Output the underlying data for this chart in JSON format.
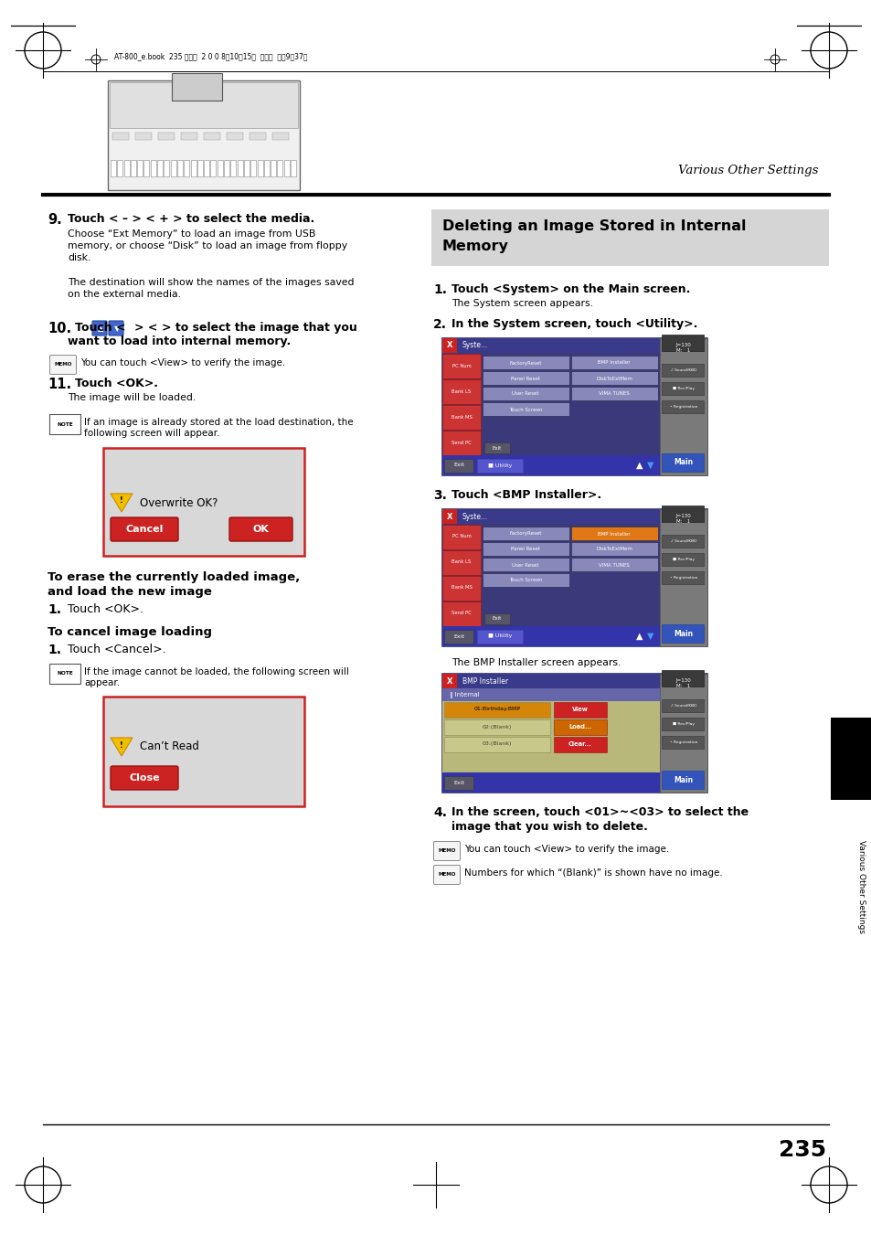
{
  "page_bg": "#ffffff",
  "page_width": 9.54,
  "page_height": 13.51,
  "header_text": "AT-800_e.book  235 ページ  2 0 0 8年10月15日  水曜日  午前9時37分",
  "top_right_text": "Various Other Settings",
  "section_title": "Deleting an Image Stored in Internal\nMemory",
  "step1_sub": "The System screen appears.",
  "step3_sub": "The BMP Installer screen appears.",
  "memo1_step4": "You can touch <View> to verify the image.",
  "memo2_step4": "Numbers for which “(Blank)” is shown have no image.",
  "left_memo_step10": "You can touch <View> to verify the image.",
  "overwrite_dialog_text": "Overwrite OK?",
  "cantread_dialog_text": "Can’t Read",
  "page_number": "235",
  "sidebar_text": "Various Other Settings"
}
